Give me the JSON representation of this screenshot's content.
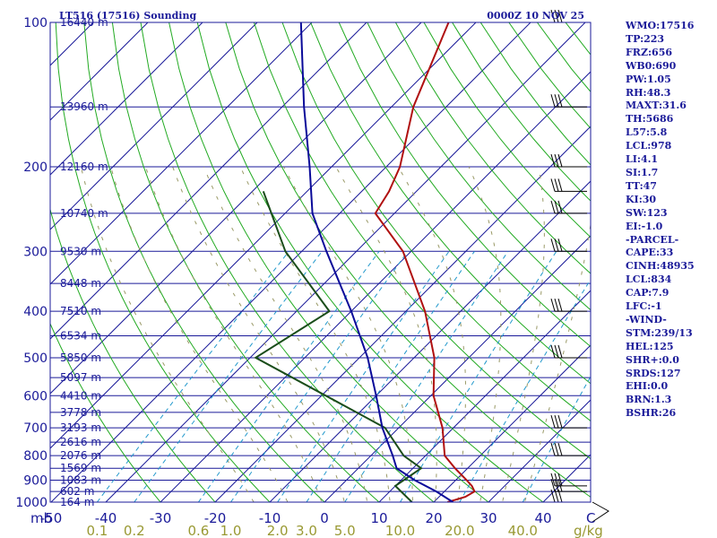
{
  "chart_data": {
    "type": "line",
    "title": "LT516 (17516) Sounding",
    "valid_time": "0000Z 10 NOV 25",
    "y_axis_label": "mb",
    "x_axis_unit": "C",
    "mixing_ratio_unit": "g/kg",
    "ylim": [
      1000,
      100
    ],
    "xlim": [
      -50,
      50
    ],
    "pressure_levels": [
      100,
      200,
      300,
      400,
      500,
      600,
      700,
      800,
      900,
      1000
    ],
    "pressure_labels": [
      "100",
      "200",
      "300",
      "400",
      "500",
      "600",
      "700",
      "800",
      "900",
      "1000"
    ],
    "height_labels": [
      {
        "p": 100,
        "text": "16440 m"
      },
      {
        "p": 150,
        "text": "13960 m"
      },
      {
        "p": 200,
        "text": "12160 m"
      },
      {
        "p": 250,
        "text": "10740 m"
      },
      {
        "p": 300,
        "text": "9530 m"
      },
      {
        "p": 350,
        "text": "8448 m"
      },
      {
        "p": 400,
        "text": "7510 m"
      },
      {
        "p": 450,
        "text": "6534 m"
      },
      {
        "p": 500,
        "text": "5850 m"
      },
      {
        "p": 550,
        "text": "5097 m"
      },
      {
        "p": 600,
        "text": "4410 m"
      },
      {
        "p": 650,
        "text": "3778 m"
      },
      {
        "p": 700,
        "text": "3193 m"
      },
      {
        "p": 750,
        "text": "2616 m"
      },
      {
        "p": 800,
        "text": "2076 m"
      },
      {
        "p": 850,
        "text": "1569 m"
      },
      {
        "p": 900,
        "text": "1083 m"
      },
      {
        "p": 950,
        "text": "602 m"
      },
      {
        "p": 1000,
        "text": "164 m"
      }
    ],
    "temperature_ticks": [
      {
        "t": -50,
        "text": "-50"
      },
      {
        "t": -40,
        "text": "-40"
      },
      {
        "t": -30,
        "text": "-30"
      },
      {
        "t": -20,
        "text": "-20"
      },
      {
        "t": -10,
        "text": "-10"
      },
      {
        "t": 0,
        "text": "0"
      },
      {
        "t": 10,
        "text": "10"
      },
      {
        "t": 20,
        "text": "20"
      },
      {
        "t": 30,
        "text": "30"
      },
      {
        "t": 40,
        "text": "40"
      }
    ],
    "mixing_ratio_ticks": [
      {
        "w": 0.1,
        "text": "0.1"
      },
      {
        "w": 0.2,
        "text": "0.2"
      },
      {
        "w": 0.6,
        "text": "0.6"
      },
      {
        "w": 1.0,
        "text": "1.0"
      },
      {
        "w": 2.0,
        "text": "2.0"
      },
      {
        "w": 3.0,
        "text": "3.0"
      },
      {
        "w": 5.0,
        "text": "5.0"
      },
      {
        "w": 10.0,
        "text": "10.0"
      },
      {
        "w": 20.0,
        "text": "20.0"
      },
      {
        "w": 40.0,
        "text": "40.0"
      }
    ],
    "series": [
      {
        "name": "Temperature",
        "color": "#b01010",
        "points": [
          {
            "p": 1000,
            "t": 22.5
          },
          {
            "p": 975,
            "t": 24.8
          },
          {
            "p": 950,
            "t": 25.5
          },
          {
            "p": 925,
            "t": 24.0
          },
          {
            "p": 900,
            "t": 22.0
          },
          {
            "p": 850,
            "t": 17.7
          },
          {
            "p": 800,
            "t": 13.5
          },
          {
            "p": 700,
            "t": 8.0
          },
          {
            "p": 600,
            "t": 0.5
          },
          {
            "p": 500,
            "t": -6.3
          },
          {
            "p": 400,
            "t": -16.5
          },
          {
            "p": 300,
            "t": -31.5
          },
          {
            "p": 250,
            "t": -43.5
          },
          {
            "p": 225,
            "t": -45.0
          },
          {
            "p": 200,
            "t": -47.5
          },
          {
            "p": 150,
            "t": -56.0
          },
          {
            "p": 100,
            "t": -65.0
          }
        ]
      },
      {
        "name": "Dew Point",
        "color": "#1a4d1a",
        "points": [
          {
            "p": 1000,
            "t": 16.0
          },
          {
            "p": 925,
            "t": 10.0
          },
          {
            "p": 850,
            "t": 11.5
          },
          {
            "p": 800,
            "t": 6.0
          },
          {
            "p": 700,
            "t": -2.5
          },
          {
            "p": 500,
            "t": -39.0
          },
          {
            "p": 400,
            "t": -34.0
          },
          {
            "p": 300,
            "t": -53.0
          },
          {
            "p": 225,
            "t": -68.0
          }
        ]
      },
      {
        "name": "Parcel Path",
        "color": "#0a0a99",
        "points": [
          {
            "p": 1000,
            "t": 23.5
          },
          {
            "p": 950,
            "t": 18.5
          },
          {
            "p": 900,
            "t": 12.5
          },
          {
            "p": 850,
            "t": 7.0
          },
          {
            "p": 800,
            "t": 4.0
          },
          {
            "p": 700,
            "t": -3.0
          },
          {
            "p": 600,
            "t": -10.0
          },
          {
            "p": 500,
            "t": -18.5
          },
          {
            "p": 400,
            "t": -30.0
          },
          {
            "p": 300,
            "t": -45.5
          },
          {
            "p": 250,
            "t": -55.0
          },
          {
            "p": 200,
            "t": -64.0
          },
          {
            "p": 150,
            "t": -76.0
          },
          {
            "p": 100,
            "t": -92.0
          }
        ]
      }
    ],
    "wind_barbs_pressure": [
      100,
      150,
      200,
      225,
      250,
      300,
      400,
      500,
      700,
      800,
      925,
      950,
      1000
    ]
  },
  "indices": [
    "WMO:17516",
    "TP:223",
    "FRZ:656",
    "WB0:690",
    "PW:1.05",
    "RH:48.3",
    "MAXT:31.6",
    "TH:5686",
    "L57:5.8",
    "LCL:978",
    "LI:4.1",
    "SI:1.7",
    "TT:47",
    "KI:30",
    "SW:123",
    "EI:-1.0",
    "-PARCEL-",
    "CAPE:33",
    "CINH:48935",
    "LCL:834",
    "CAP:7.9",
    "LFC:-1",
    "-WIND-",
    "STM:239/13",
    "HEL:125",
    "SHR+:0.0",
    "SRDS:127",
    "EHI:0.0",
    "BRN:1.3",
    "BSHR:26"
  ],
  "colors": {
    "isobar": "#1a1a99",
    "isotherm": "#1a1a99",
    "dry_adiabat": "#22aa22",
    "moist_adiabat": "#999966",
    "mixing_ratio": "#2299cc",
    "frame": "#1a1a99"
  }
}
